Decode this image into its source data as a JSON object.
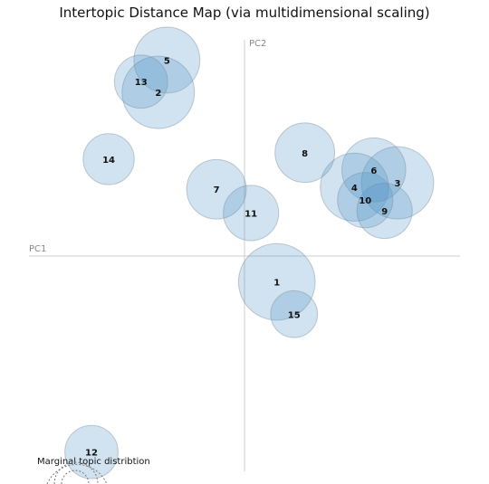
{
  "chart_data": {
    "type": "scatter",
    "title": "Intertopic Distance Map (via multidimensional scaling)",
    "xlabel": "PC1",
    "ylabel": "PC2",
    "xlim": [
      -1,
      1
    ],
    "ylim": [
      -1,
      1
    ],
    "grid": false,
    "legend_text": "Marginal topic distribtion",
    "colors": {
      "bubble_fill": "#4f92c4",
      "bubble_edge": "#7a8d9c",
      "axis": "#cccccc"
    },
    "topics": [
      {
        "label": "1",
        "x": 0.15,
        "y": -0.12,
        "size": 0.18
      },
      {
        "label": "2",
        "x": -0.4,
        "y": 0.76,
        "size": 0.17
      },
      {
        "label": "3",
        "x": 0.71,
        "y": 0.34,
        "size": 0.17
      },
      {
        "label": "4",
        "x": 0.51,
        "y": 0.32,
        "size": 0.16
      },
      {
        "label": "5",
        "x": -0.36,
        "y": 0.91,
        "size": 0.155
      },
      {
        "label": "6",
        "x": 0.6,
        "y": 0.4,
        "size": 0.15
      },
      {
        "label": "7",
        "x": -0.13,
        "y": 0.31,
        "size": 0.14
      },
      {
        "label": "8",
        "x": 0.28,
        "y": 0.48,
        "size": 0.14
      },
      {
        "label": "9",
        "x": 0.65,
        "y": 0.21,
        "size": 0.13
      },
      {
        "label": "10",
        "x": 0.56,
        "y": 0.26,
        "size": 0.13
      },
      {
        "label": "11",
        "x": 0.03,
        "y": 0.2,
        "size": 0.13
      },
      {
        "label": "12",
        "x": -0.71,
        "y": -0.91,
        "size": 0.125
      },
      {
        "label": "13",
        "x": -0.48,
        "y": 0.81,
        "size": 0.125
      },
      {
        "label": "14",
        "x": -0.63,
        "y": 0.45,
        "size": 0.12
      },
      {
        "label": "15",
        "x": 0.23,
        "y": -0.27,
        "size": 0.11
      }
    ]
  }
}
